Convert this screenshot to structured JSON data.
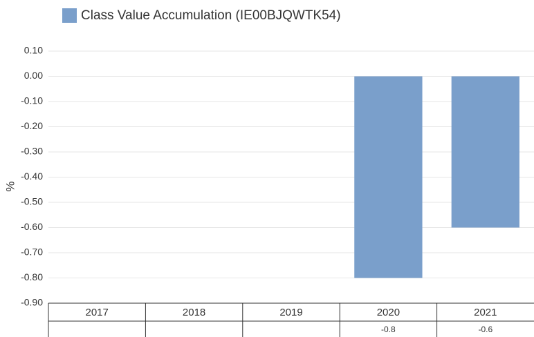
{
  "chart_data": {
    "type": "bar",
    "categories": [
      "2017",
      "2018",
      "2019",
      "2020",
      "2021"
    ],
    "series": [
      {
        "name": "Class Value Accumulation (IE00BJQWTK54)",
        "color": "#7a9fcb",
        "values": [
          null,
          null,
          null,
          -0.8,
          -0.6
        ]
      }
    ],
    "y_label": "%",
    "ylim": [
      -0.9,
      0.1
    ],
    "yticks": [
      {
        "value": 0.1,
        "label": "0.10"
      },
      {
        "value": 0,
        "label": "0.00"
      },
      {
        "value": -0.1,
        "label": "-0.10"
      },
      {
        "value": -0.2,
        "label": "-0.20"
      },
      {
        "value": -0.3,
        "label": "-0.30"
      },
      {
        "value": -0.4,
        "label": "-0.40"
      },
      {
        "value": -0.5,
        "label": "-0.50"
      },
      {
        "value": -0.6,
        "label": "-0.60"
      },
      {
        "value": -0.7,
        "label": "-0.70"
      },
      {
        "value": -0.8,
        "label": "-0.80"
      },
      {
        "value": -0.9,
        "label": "-0.90"
      }
    ],
    "grid": true
  }
}
